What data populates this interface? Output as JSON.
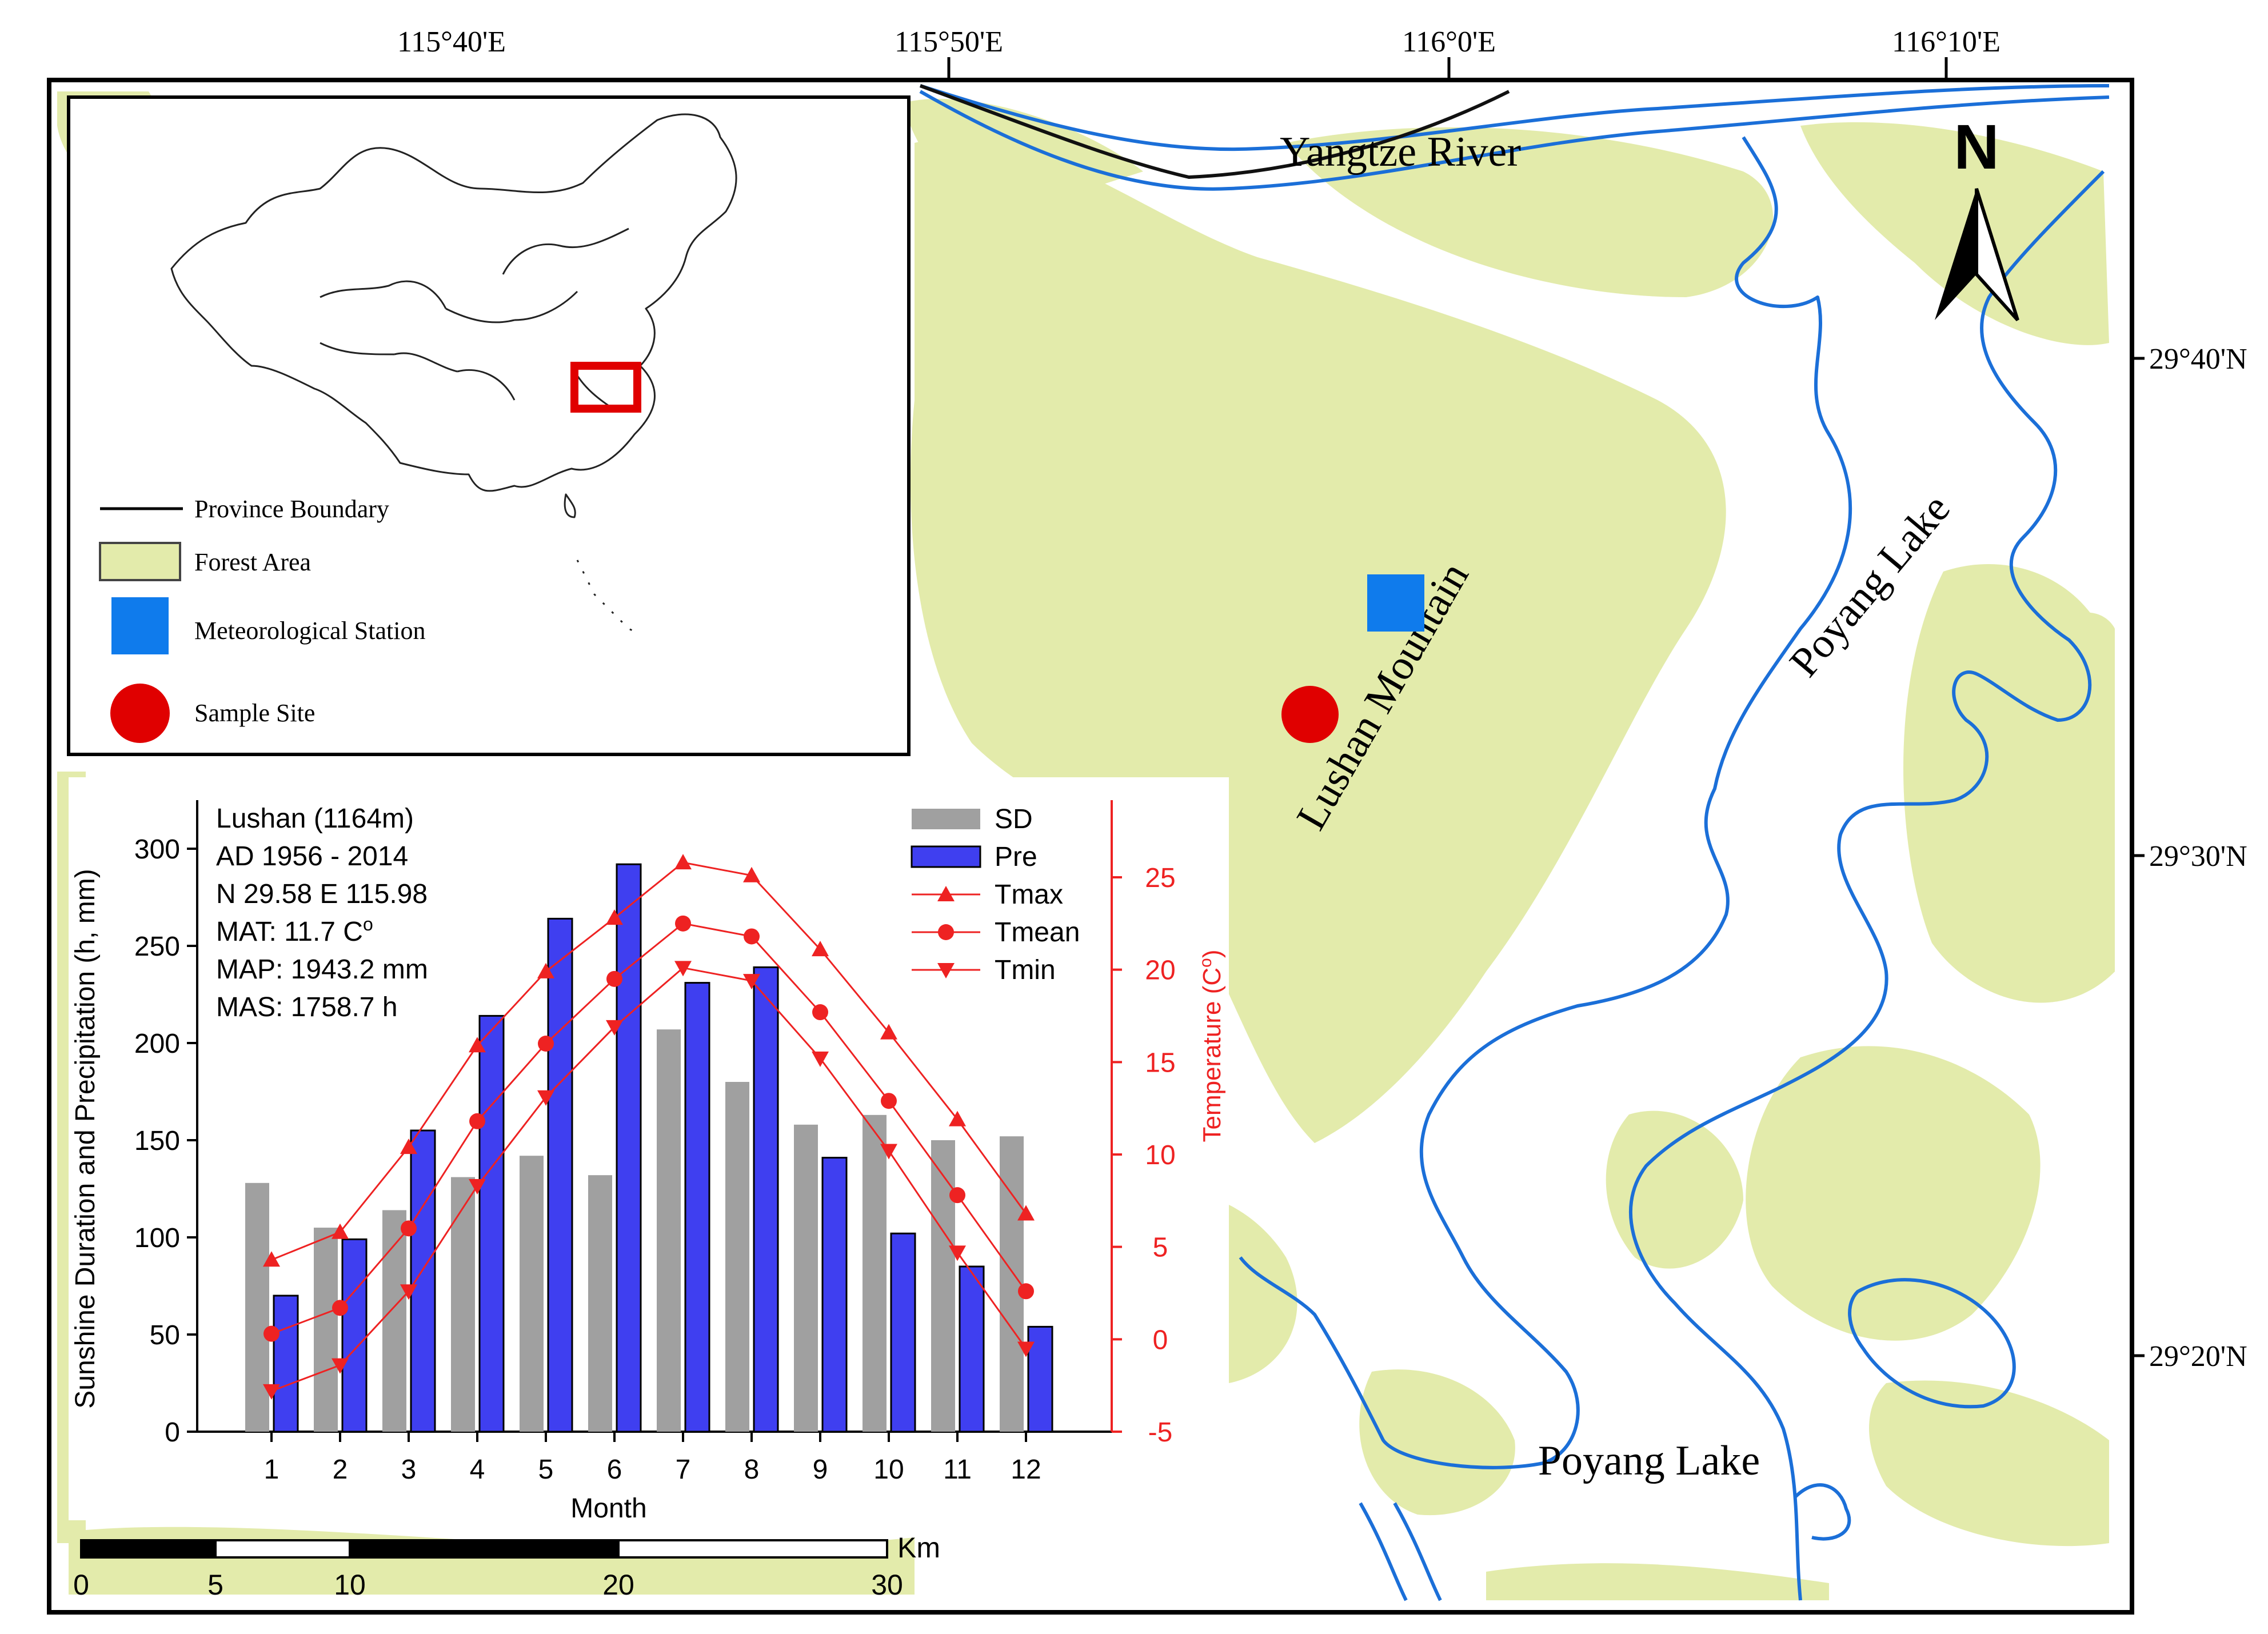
{
  "map": {
    "top_longitude_labels": [
      "115°40'E",
      "115°50'E",
      "116°0'E",
      "116°10'E"
    ],
    "right_latitude_labels": [
      "29°40'N",
      "29°30'N",
      "29°20'N"
    ],
    "place_labels": {
      "yangtze_river": "Yangtze River",
      "lushan_mountain": "Lushan Mountain",
      "poyang_lake_upper": "Poyang Lake",
      "poyang_lake_lower": "Poyang Lake"
    },
    "north_arrow_label": "N",
    "colors": {
      "forest": "#e3ebab",
      "water_line": "#1b6fd8",
      "station": "#0f7bec",
      "sample_site": "#e00000",
      "inset_box": "#e00000"
    }
  },
  "legend": {
    "items": [
      {
        "label": "Province Boundary",
        "symbol": "line"
      },
      {
        "label": "Forest Area",
        "symbol": "forest-rect"
      },
      {
        "label": "Meteorological Station",
        "symbol": "blue-square"
      },
      {
        "label": "Sample Site",
        "symbol": "red-circle"
      }
    ]
  },
  "scale_bar": {
    "ticks": [
      "0",
      "5",
      "10",
      "20",
      "30"
    ],
    "unit": "Km"
  },
  "chart_data": {
    "type": "bar",
    "categories": [
      "1",
      "2",
      "3",
      "4",
      "5",
      "6",
      "7",
      "8",
      "9",
      "10",
      "11",
      "12"
    ],
    "xlabel": "Month",
    "ylabel": "Sunshine Duration and Precipitation (h, mm)",
    "y2label": "Temperature (C",
    "y2label_sup": "o",
    "ylim": [
      0,
      300
    ],
    "y_ticks": [
      "0",
      "50",
      "100",
      "150",
      "200",
      "250",
      "300"
    ],
    "y2lim": [
      -5,
      28
    ],
    "y2_ticks": [
      "-5",
      "0",
      "5",
      "10",
      "15",
      "20",
      "25"
    ],
    "info_lines": [
      "Lushan (1164m)",
      "AD 1956 - 2014",
      "N 29.58  E 115.98",
      "MAT: 11.7 C",
      "MAP: 1943.2 mm",
      "MAS:  1758.7 h"
    ],
    "info_mat_sup": "o",
    "series": [
      {
        "name": "SD",
        "kind": "bar",
        "axis": "left",
        "color": "#a0a0a0",
        "values": [
          128,
          105,
          114,
          131,
          142,
          132,
          207,
          180,
          158,
          163,
          150,
          152
        ]
      },
      {
        "name": "Pre",
        "kind": "bar",
        "axis": "left",
        "color": "#3f3ff0",
        "values": [
          70,
          99,
          155,
          214,
          264,
          292,
          231,
          239,
          141,
          102,
          85,
          54
        ]
      },
      {
        "name": "Tmax",
        "kind": "line",
        "axis": "right",
        "color": "#ee2222",
        "marker": "triangle-up",
        "values": [
          4.3,
          5.8,
          10.4,
          15.9,
          19.9,
          22.8,
          25.8,
          25.1,
          21.1,
          16.6,
          11.9,
          6.8
        ]
      },
      {
        "name": "Tmean",
        "kind": "line",
        "axis": "right",
        "color": "#ee2222",
        "marker": "circle",
        "values": [
          0.3,
          1.7,
          6.0,
          11.8,
          16.0,
          19.5,
          22.5,
          21.8,
          17.7,
          12.9,
          7.8,
          2.6
        ]
      },
      {
        "name": "Tmin",
        "kind": "line",
        "axis": "right",
        "color": "#ee2222",
        "marker": "triangle-down",
        "values": [
          -2.8,
          -1.4,
          2.6,
          8.3,
          13.1,
          16.9,
          20.1,
          19.4,
          15.2,
          10.2,
          4.7,
          -0.5
        ]
      }
    ],
    "legend_position": "top-right"
  }
}
